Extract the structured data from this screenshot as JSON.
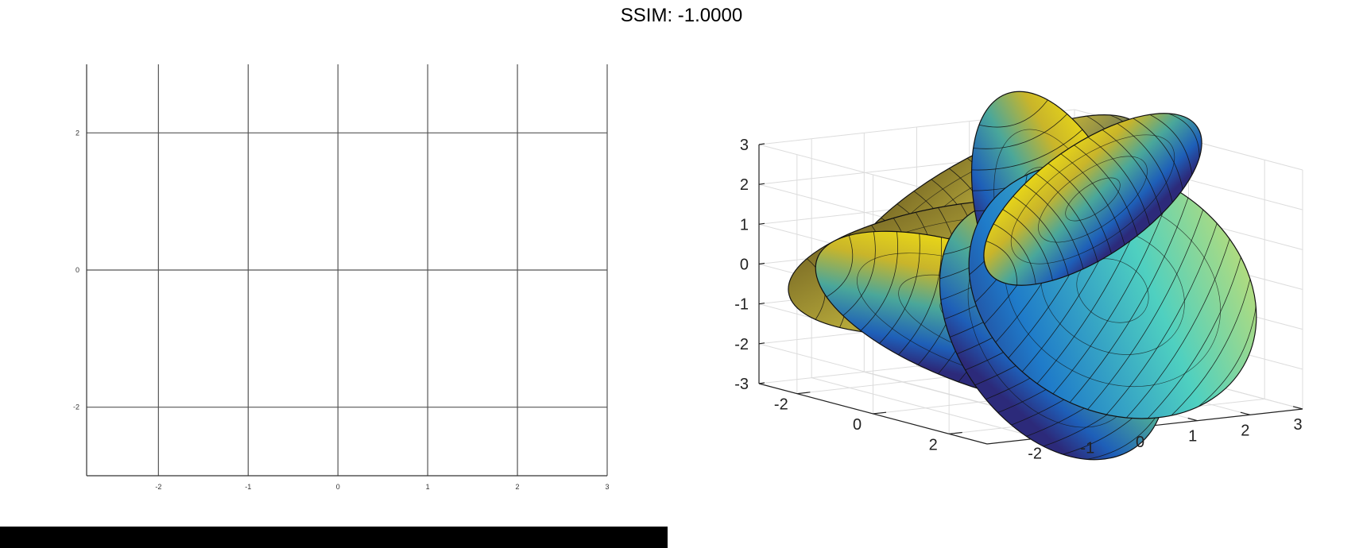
{
  "figure": {
    "title": "SSIM: -1.0000"
  },
  "chart_data": [
    {
      "type": "line",
      "name": "left-axes",
      "xlim": [
        -2.8,
        3
      ],
      "ylim": [
        -3,
        3
      ],
      "xticks": [
        -2,
        -1,
        0,
        1,
        2,
        3
      ],
      "xtick_labels": [
        "-2",
        "-1",
        "0",
        "1",
        "2",
        "3"
      ],
      "yticks": [
        -2,
        0,
        2
      ],
      "ytick_labels": [
        "-2",
        "0",
        "2"
      ],
      "grid": true,
      "series": []
    },
    {
      "type": "surface3d",
      "name": "right-axes",
      "xlim": [
        -3,
        3
      ],
      "ylim": [
        -3,
        3
      ],
      "zlim": [
        -3,
        3
      ],
      "xticks": [
        -2,
        -1,
        0,
        1,
        2,
        3
      ],
      "xtick_labels": [
        "-2",
        "-1",
        "0",
        "1",
        "2",
        "3"
      ],
      "yticks": [
        -2,
        0,
        2
      ],
      "ytick_labels": [
        "-2",
        "0",
        "2"
      ],
      "zticks": [
        -3,
        -2,
        -1,
        0,
        1,
        2,
        3
      ],
      "ztick_labels": [
        "-3",
        "-2",
        "-1",
        "0",
        "1",
        "2",
        "3"
      ],
      "grid": true,
      "colormap": [
        "#352a87",
        "#0f5cdd",
        "#1481d6",
        "#06a4ca",
        "#2eb7a4",
        "#87bf77",
        "#d1bb59",
        "#fec832",
        "#f9fb0e"
      ],
      "edge_color": "#000000"
    }
  ]
}
